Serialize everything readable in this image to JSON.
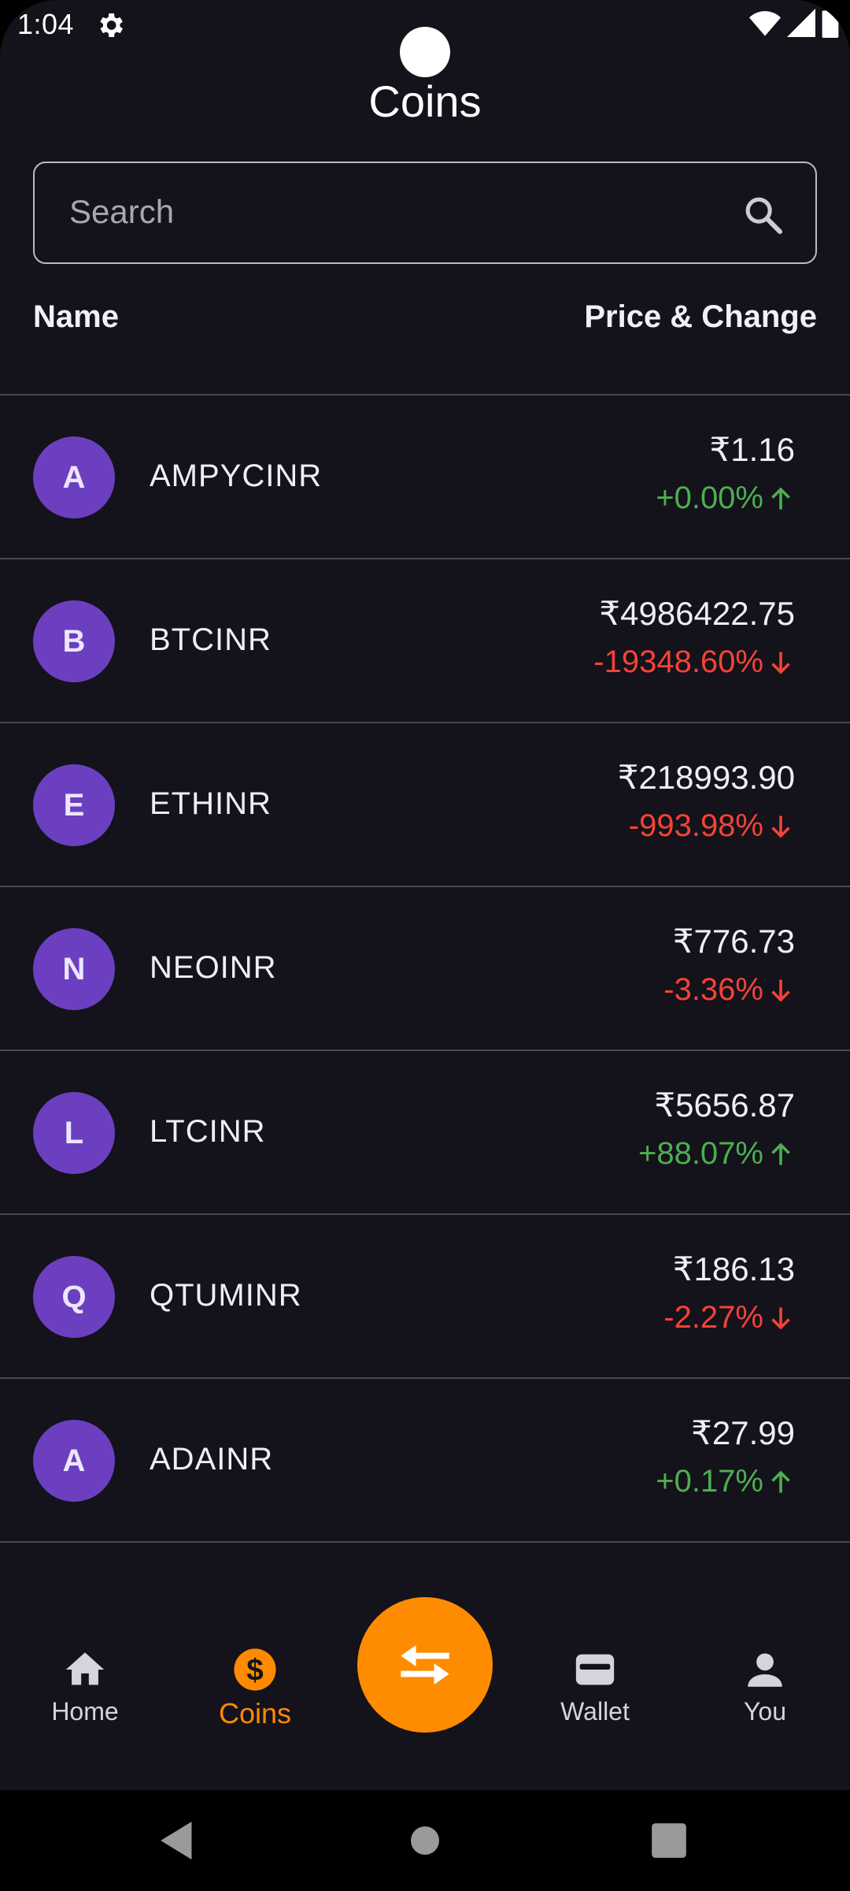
{
  "status_bar": {
    "time": "1:04"
  },
  "header": {
    "title": "Coins"
  },
  "search": {
    "placeholder": "Search"
  },
  "columns": {
    "name": "Name",
    "price_change": "Price & Change"
  },
  "colors": {
    "up": "#4caf50",
    "down": "#f44336",
    "accent": "#ff8c00",
    "avatar": "#6b3fc0"
  },
  "coins": [
    {
      "letter": "A",
      "symbol": "AMPYCINR",
      "price": "₹1.16",
      "change": "+0.00%",
      "direction": "up"
    },
    {
      "letter": "B",
      "symbol": "BTCINR",
      "price": "₹4986422.75",
      "change": "-19348.60%",
      "direction": "down"
    },
    {
      "letter": "E",
      "symbol": "ETHINR",
      "price": "₹218993.90",
      "change": "-993.98%",
      "direction": "down"
    },
    {
      "letter": "N",
      "symbol": "NEOINR",
      "price": "₹776.73",
      "change": "-3.36%",
      "direction": "down"
    },
    {
      "letter": "L",
      "symbol": "LTCINR",
      "price": "₹5656.87",
      "change": "+88.07%",
      "direction": "up"
    },
    {
      "letter": "Q",
      "symbol": "QTUMINR",
      "price": "₹186.13",
      "change": "-2.27%",
      "direction": "down"
    },
    {
      "letter": "A",
      "symbol": "ADAINR",
      "price": "₹27.99",
      "change": "+0.17%",
      "direction": "up"
    }
  ],
  "nav": {
    "home": "Home",
    "coins": "Coins",
    "wallet": "Wallet",
    "you": "You"
  }
}
